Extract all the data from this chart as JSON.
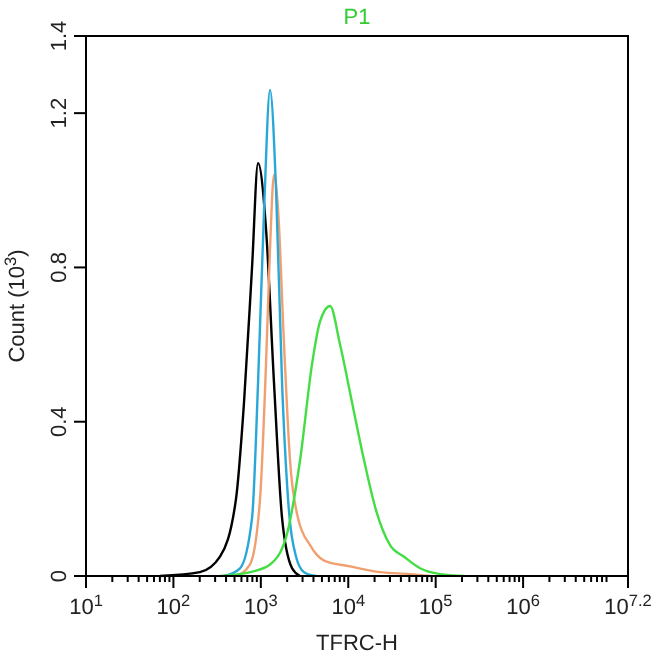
{
  "chart_data": {
    "type": "line",
    "title": "P1",
    "xlabel": "TFRC-H",
    "ylabel": "Count (10$^{3}$)",
    "log": "x",
    "grid": false,
    "marker": "none",
    "line_style": "solid",
    "xlim": [
      10,
      15848932
    ],
    "ylim": [
      0,
      1.4
    ],
    "yticks": [
      0,
      0.4,
      0.8,
      1.2,
      1.4
    ],
    "xticks": [
      {
        "value": 10,
        "label": "10$^{1}$"
      },
      {
        "value": 20,
        "label": null
      },
      {
        "value": 30,
        "label": null
      },
      {
        "value": 40,
        "label": null
      },
      {
        "value": 50,
        "label": null
      },
      {
        "value": 60,
        "label": null
      },
      {
        "value": 70,
        "label": null
      },
      {
        "value": 80,
        "label": null
      },
      {
        "value": 90,
        "label": null
      },
      {
        "value": 100,
        "label": "10$^{2}$"
      },
      {
        "value": 200,
        "label": null
      },
      {
        "value": 300,
        "label": null
      },
      {
        "value": 400,
        "label": null
      },
      {
        "value": 500,
        "label": null
      },
      {
        "value": 600,
        "label": null
      },
      {
        "value": 700,
        "label": null
      },
      {
        "value": 800,
        "label": null
      },
      {
        "value": 900,
        "label": null
      },
      {
        "value": 1000,
        "label": "10$^{3}$"
      },
      {
        "value": 2000,
        "label": null
      },
      {
        "value": 3000,
        "label": null
      },
      {
        "value": 4000,
        "label": null
      },
      {
        "value": 5000,
        "label": null
      },
      {
        "value": 6000,
        "label": null
      },
      {
        "value": 7000,
        "label": null
      },
      {
        "value": 8000,
        "label": null
      },
      {
        "value": 9000,
        "label": null
      },
      {
        "value": 10000,
        "label": "10$^{4}$"
      },
      {
        "value": 20000,
        "label": null
      },
      {
        "value": 30000,
        "label": null
      },
      {
        "value": 40000,
        "label": null
      },
      {
        "value": 50000,
        "label": null
      },
      {
        "value": 60000,
        "label": null
      },
      {
        "value": 70000,
        "label": null
      },
      {
        "value": 80000,
        "label": null
      },
      {
        "value": 90000,
        "label": null
      },
      {
        "value": 100000,
        "label": "10$^{5}$"
      },
      {
        "value": 200000,
        "label": null
      },
      {
        "value": 300000,
        "label": null
      },
      {
        "value": 400000,
        "label": null
      },
      {
        "value": 500000,
        "label": null
      },
      {
        "value": 600000,
        "label": null
      },
      {
        "value": 700000,
        "label": null
      },
      {
        "value": 800000,
        "label": null
      },
      {
        "value": 900000,
        "label": null
      },
      {
        "value": 1000000,
        "label": "10$^{6}$"
      },
      {
        "value": 2000000,
        "label": null
      },
      {
        "value": 3000000,
        "label": null
      },
      {
        "value": 4000000,
        "label": null
      },
      {
        "value": 5000000,
        "label": null
      },
      {
        "value": 6000000,
        "label": null
      },
      {
        "value": 7000000,
        "label": null
      },
      {
        "value": 8000000,
        "label": null
      },
      {
        "value": 9000000,
        "label": null
      },
      {
        "value": 15848932,
        "label": "10$^{7.2}$"
      }
    ],
    "series": [
      {
        "color": "#000000",
        "x": [
          70,
          201,
          341,
          520,
          642,
          793,
          929,
          1146,
          1415,
          1749,
          2277,
          2810
        ],
        "values": [
          0,
          0.01,
          0.05,
          0.2,
          0.45,
          0.8,
          1.07,
          0.9,
          0.5,
          0.15,
          0.02,
          0
        ]
      },
      {
        "color": "#f0a070",
        "x": [
          520,
          752,
          979,
          1146,
          1274,
          1415,
          1574,
          1842,
          2157,
          2665,
          3656,
          5286,
          10490,
          23120,
          50930,
          86240
        ],
        "values": [
          0,
          0.03,
          0.2,
          0.55,
          0.85,
          1.04,
          0.95,
          0.6,
          0.3,
          0.15,
          0.08,
          0.04,
          0.025,
          0.01,
          0.005,
          0
        ]
      },
      {
        "color": "#29a8d8",
        "x": [
          379,
          578,
          793,
          929,
          1089,
          1274,
          1494,
          1749,
          2047,
          2528,
          3120,
          4285
        ],
        "values": [
          0,
          0.02,
          0.15,
          0.5,
          0.95,
          1.26,
          1.0,
          0.5,
          0.2,
          0.05,
          0.01,
          0
        ]
      },
      {
        "color": "#44dd44",
        "x": [
          341,
          752,
          1274,
          1942,
          2810,
          3856,
          4757,
          6190,
          8055,
          11050,
          15160,
          20800,
          30070,
          43470,
          66330,
          112200,
          211300
        ],
        "values": [
          0,
          0.01,
          0.03,
          0.1,
          0.3,
          0.55,
          0.66,
          0.7,
          0.6,
          0.45,
          0.3,
          0.17,
          0.08,
          0.05,
          0.02,
          0.005,
          0
        ]
      }
    ]
  }
}
